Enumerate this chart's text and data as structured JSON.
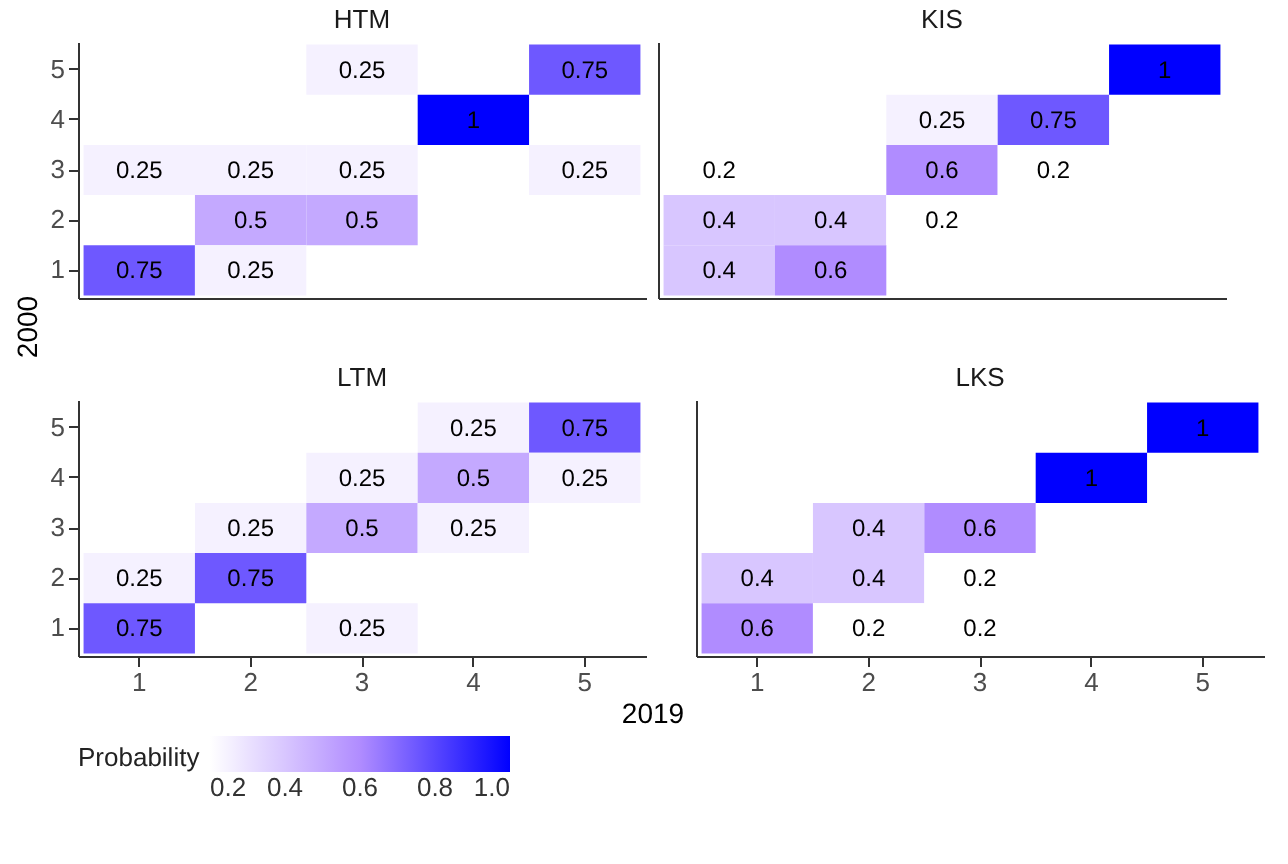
{
  "chart_data": [
    {
      "type": "heatmap",
      "title": "HTM",
      "ylabel": "2000",
      "clabel": "Probability",
      "tick_labels": "y",
      "data_labels": true,
      "clim": [
        0.2,
        1
      ],
      "cticks": [
        0.2,
        0.4,
        0.6,
        0.8,
        {
          "value": 1,
          "label": "1.0"
        }
      ],
      "categories": [
        "1",
        "2",
        "3",
        "4",
        "5"
      ],
      "y_categories": [
        "5",
        "4",
        "3",
        "2",
        "1"
      ],
      "cells": [
        [
          null,
          null,
          0.25,
          null,
          0.75
        ],
        [
          null,
          null,
          null,
          1,
          null
        ],
        [
          0.25,
          0.25,
          0.25,
          null,
          0.25
        ],
        [
          null,
          0.5,
          0.5,
          null,
          null
        ],
        [
          0.75,
          0.25,
          null,
          null,
          null
        ]
      ]
    },
    {
      "type": "heatmap",
      "title": "KIS",
      "tick_labels": false,
      "data_labels": true,
      "categories": [
        "1",
        "2",
        "3",
        "4",
        "5"
      ],
      "y_categories": [
        "5",
        "4",
        "3",
        "2",
        "1"
      ],
      "cells": [
        [
          null,
          null,
          null,
          null,
          1
        ],
        [
          null,
          null,
          0.25,
          0.75,
          null
        ],
        [
          0.2,
          null,
          0.6,
          0.2,
          null
        ],
        [
          0.4,
          0.4,
          0.2,
          null,
          null
        ],
        [
          0.4,
          0.6,
          null,
          null,
          null
        ]
      ]
    },
    {
      "type": "heatmap",
      "title": "LTM",
      "xlabel": "2019",
      "data_labels": true,
      "categories": [
        "1",
        "2",
        "3",
        "4",
        "5"
      ],
      "y_categories": [
        "5",
        "4",
        "3",
        "2",
        "1"
      ],
      "cells": [
        [
          null,
          null,
          null,
          0.25,
          0.75
        ],
        [
          null,
          null,
          0.25,
          0.5,
          0.25
        ],
        [
          null,
          0.25,
          0.5,
          0.25,
          null
        ],
        [
          0.25,
          0.75,
          null,
          null,
          null
        ],
        [
          0.75,
          null,
          0.25,
          null,
          null
        ]
      ]
    },
    {
      "type": "heatmap",
      "title": "LKS",
      "tick_labels": "x",
      "data_labels": true,
      "categories": [
        "1",
        "2",
        "3",
        "4",
        "5"
      ],
      "y_categories": [
        "5",
        "4",
        "3",
        "2",
        "1"
      ],
      "cells": [
        [
          null,
          null,
          null,
          null,
          1
        ],
        [
          null,
          null,
          null,
          1,
          null
        ],
        [
          null,
          0.4,
          0.6,
          null,
          null
        ],
        [
          0.4,
          0.4,
          0.2,
          null,
          null
        ],
        [
          0.6,
          0.2,
          0.2,
          null,
          null
        ]
      ]
    }
  ]
}
